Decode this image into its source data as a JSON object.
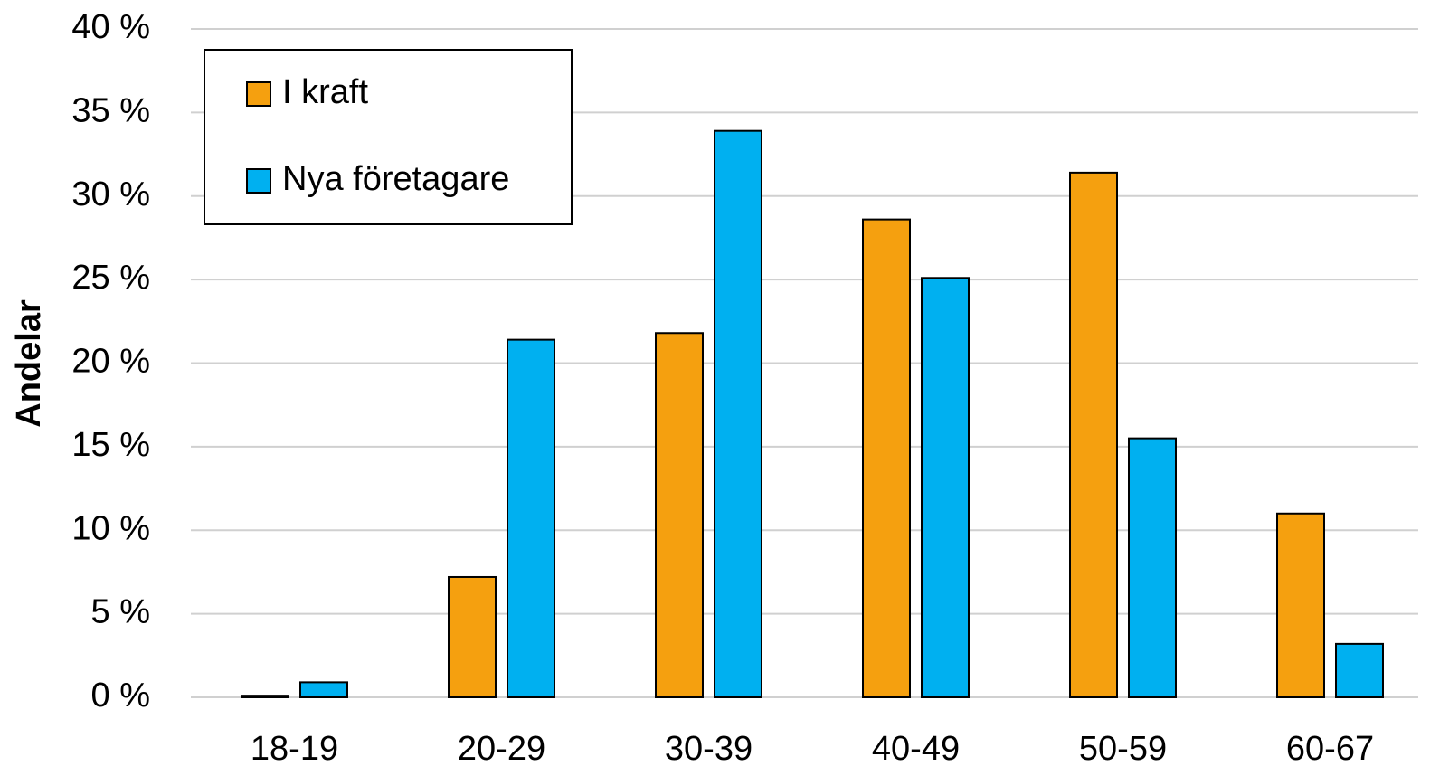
{
  "chart_data": {
    "type": "bar",
    "y_label": "Andelar",
    "categories": [
      "18-19",
      "20-29",
      "30-39",
      "40-49",
      "50-59",
      "60-67"
    ],
    "series": [
      {
        "name": "I kraft",
        "color": "#f5a00f",
        "values": [
          0.1,
          7.2,
          21.8,
          28.6,
          31.4,
          11.0
        ]
      },
      {
        "name": "Nya företagare",
        "color": "#00b0f0",
        "values": [
          0.9,
          21.4,
          33.9,
          25.1,
          15.5,
          3.2
        ]
      }
    ],
    "ylim": [
      0,
      40
    ],
    "yticks": [
      {
        "value": 0,
        "label": "0 %"
      },
      {
        "value": 5,
        "label": "5 %"
      },
      {
        "value": 10,
        "label": "10 %"
      },
      {
        "value": 15,
        "label": "15 %"
      },
      {
        "value": 20,
        "label": "20 %"
      },
      {
        "value": 25,
        "label": "25 %"
      },
      {
        "value": 30,
        "label": "30 %"
      },
      {
        "value": 35,
        "label": "35 %"
      },
      {
        "value": 40,
        "label": "40 %"
      }
    ],
    "grid": true,
    "legend": "top-left"
  }
}
